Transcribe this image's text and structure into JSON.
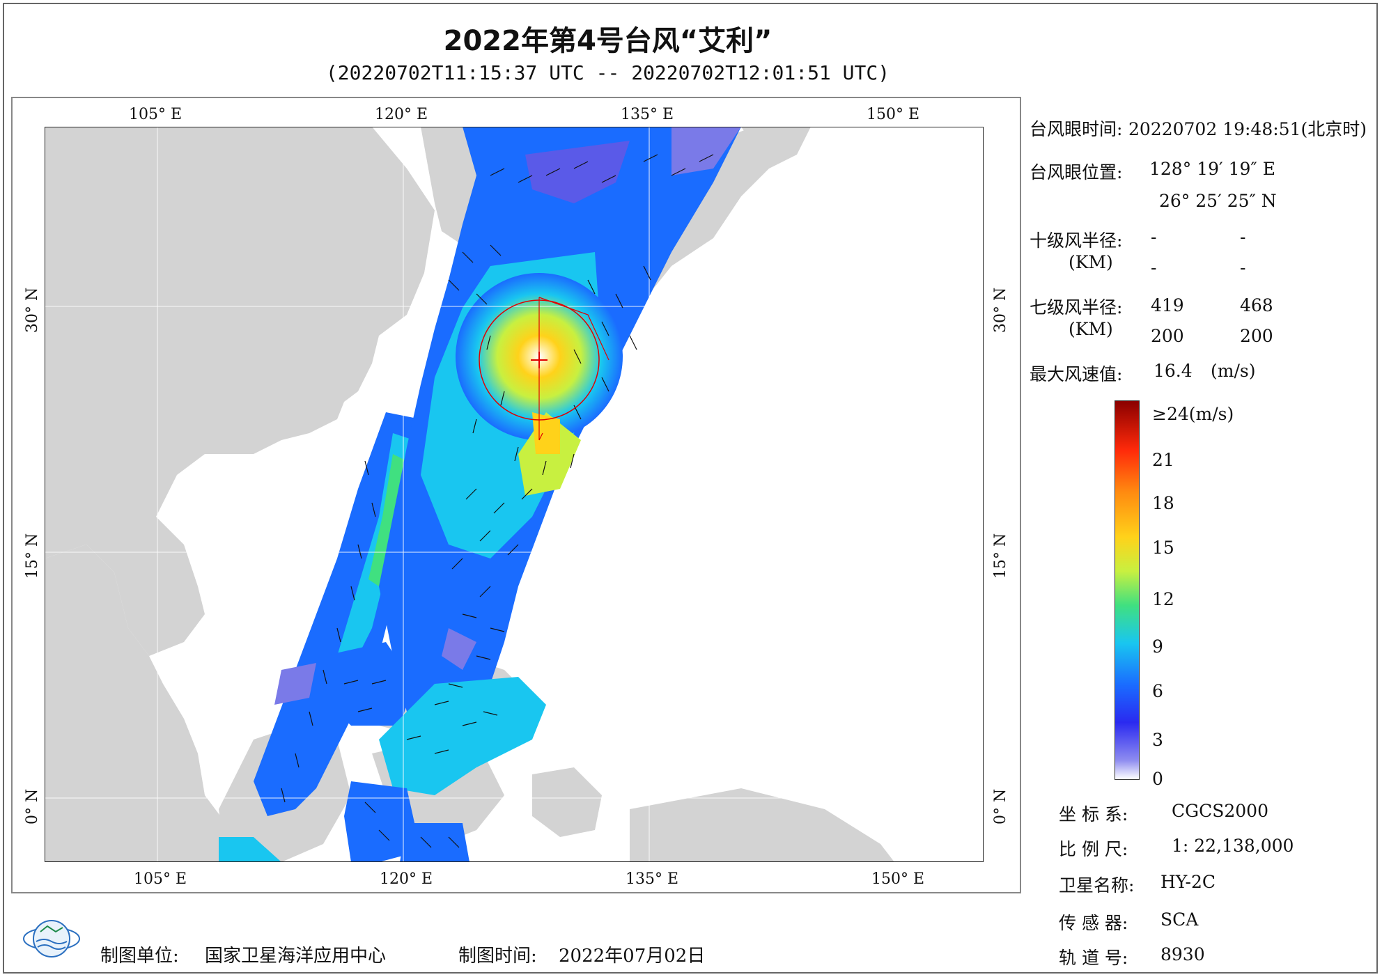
{
  "title": "2022年第4号台风“艾利”",
  "subtitle": "(20220702T11:15:37 UTC -- 20220702T12:01:51 UTC)",
  "axes": {
    "lon_ticks": [
      "105° E",
      "120° E",
      "135° E",
      "150° E"
    ],
    "lat_ticks": [
      "30° N",
      "15° N",
      "0° N"
    ]
  },
  "info": {
    "eye_time_label": "台风眼时间:",
    "eye_time_value": "20220702 19:48:51(北京时)",
    "eye_pos_label": "台风眼位置:",
    "eye_lon": "128° 19′ 19″ E",
    "eye_lat": "26° 25′ 25″ N",
    "r10_label": "十级风半径:",
    "r10_unit": "(KM)",
    "r10_values": [
      "-",
      "-",
      "-",
      "-"
    ],
    "r7_label": "七级风半径:",
    "r7_unit": "(KM)",
    "r7_values": [
      "419",
      "468",
      "200",
      "200"
    ],
    "max_wind_label": "最大风速值:",
    "max_wind_value": "16.4",
    "max_wind_unit": "(m/s)"
  },
  "legend": {
    "top_label": "≥24(m/s)",
    "labels": [
      "21",
      "18",
      "15",
      "12",
      "9",
      "6",
      "3",
      "0"
    ]
  },
  "meta": {
    "coord_label": "坐 标 系:",
    "coord_value": "CGCS2000",
    "scale_label": "比 例 尺:",
    "scale_value": "1: 22,138,000",
    "satellite_label": "卫星名称:",
    "satellite_value": "HY-2C",
    "sensor_label": "传 感 器:",
    "sensor_value": "SCA",
    "orbit_label": "轨 道 号:",
    "orbit_value": "8930"
  },
  "footer": {
    "unit_label": "制图单位:",
    "unit_value": "国家卫星海洋应用中心",
    "time_label": "制图时间:",
    "time_value": "2022年07月02日"
  },
  "colors": {
    "land": "#d3d3d3",
    "sea": "#ffffff",
    "eye_marker": "#e00000"
  }
}
